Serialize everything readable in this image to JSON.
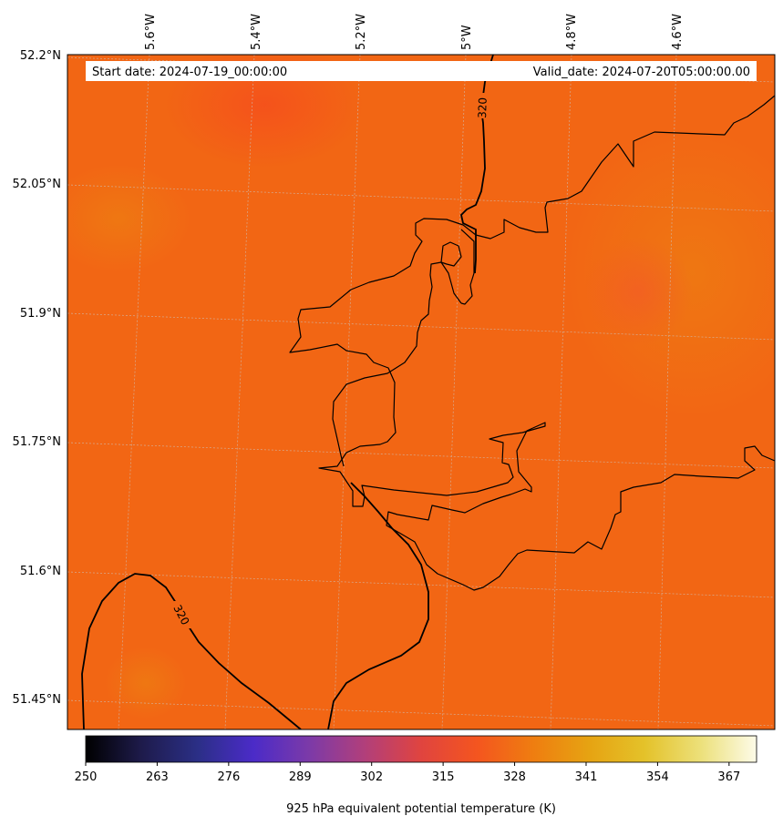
{
  "header": {
    "start_date": "Start date: 2024-07-19_00:00:00",
    "valid_date": "Valid_date: 2024-07-20T05:00:00.00"
  },
  "longitude_labels": [
    "5.6°W",
    "5.4°W",
    "5.2°W",
    "5°W",
    "4.8°W",
    "4.6°W"
  ],
  "latitude_labels": [
    "52.2°N",
    "52.05°N",
    "51.9°N",
    "51.75°N",
    "51.6°N",
    "51.45°N"
  ],
  "contours": [
    {
      "value": "320"
    },
    {
      "value": "320"
    }
  ],
  "colorbar": {
    "ticks": [
      "250",
      "263",
      "276",
      "289",
      "302",
      "315",
      "328",
      "341",
      "354",
      "367"
    ],
    "label": "925 hPa equivalent potential temperature (K)",
    "min": 250,
    "max": 372,
    "colors": [
      "#000000",
      "#1e1b4b",
      "#2b2f86",
      "#4b2bc8",
      "#7c3aa8",
      "#b23f7a",
      "#e0443f",
      "#f4551f",
      "#ef7d10",
      "#e6a312",
      "#e4c22a",
      "#ece07a",
      "#fdfbe8"
    ]
  },
  "field": {
    "base_color": "#f26614",
    "warm_color": "#f5561c",
    "cool_color": "#ee7612"
  }
}
